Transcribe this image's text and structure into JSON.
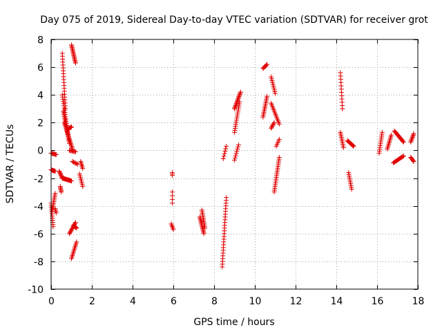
{
  "chart_data": {
    "type": "scatter",
    "title": "Day 075 of 2019, Sidereal Day-to-day VTEC variation (SDTVAR) for receiver grot",
    "xlabel": "GPS time / hours",
    "ylabel": "SDTVAR / TECUs",
    "xlim": [
      0,
      18
    ],
    "ylim": [
      -10,
      8
    ],
    "xticks": [
      "0",
      "2",
      "4",
      "6",
      "8",
      "10",
      "12",
      "14",
      "16",
      "18"
    ],
    "yticks": [
      "-10",
      "-8",
      "-6",
      "-4",
      "-2",
      "0",
      "2",
      "4",
      "6",
      "8"
    ],
    "grid": true,
    "marker": "+",
    "color": "#e00000",
    "segments": [
      {
        "x0": 0.0,
        "x1": 0.2,
        "y0": -1.4,
        "y1": -1.5,
        "n": 8
      },
      {
        "x0": 0.0,
        "x1": 0.25,
        "y0": -0.2,
        "y1": -0.3,
        "n": 8
      },
      {
        "x0": 0.0,
        "x1": 0.1,
        "y0": -3.8,
        "y1": -5.5,
        "n": 12
      },
      {
        "x0": 0.05,
        "x1": 0.2,
        "y0": -4.4,
        "y1": -3.1,
        "n": 12
      },
      {
        "x0": 0.2,
        "x1": 0.25,
        "y0": -4.2,
        "y1": -4.5,
        "n": 4
      },
      {
        "x0": 0.4,
        "x1": 0.55,
        "y0": -1.5,
        "y1": -2.0,
        "n": 8
      },
      {
        "x0": 0.45,
        "x1": 0.5,
        "y0": -2.6,
        "y1": -3.0,
        "n": 6
      },
      {
        "x0": 0.55,
        "x1": 1.0,
        "y0": -2.0,
        "y1": -2.2,
        "n": 16
      },
      {
        "x0": 0.55,
        "x1": 0.7,
        "y0": 7.0,
        "y1": 3.0,
        "n": 20
      },
      {
        "x0": 0.55,
        "x1": 0.85,
        "y0": 4.0,
        "y1": 1.0,
        "n": 20
      },
      {
        "x0": 0.6,
        "x1": 0.9,
        "y0": 2.8,
        "y1": 0.5,
        "n": 20
      },
      {
        "x0": 0.65,
        "x1": 1.05,
        "y0": 2.0,
        "y1": 0.1,
        "n": 20
      },
      {
        "x0": 0.8,
        "x1": 1.0,
        "y0": 1.5,
        "y1": 1.7,
        "n": 8
      },
      {
        "x0": 0.9,
        "x1": 1.2,
        "y0": 0.0,
        "y1": -0.1,
        "n": 8
      },
      {
        "x0": 1.0,
        "x1": 1.2,
        "y0": 7.6,
        "y1": 6.3,
        "n": 16
      },
      {
        "x0": 1.05,
        "x1": 1.3,
        "y0": -0.8,
        "y1": -1.0,
        "n": 6
      },
      {
        "x0": 0.9,
        "x1": 1.2,
        "y0": -6.0,
        "y1": -5.2,
        "n": 12
      },
      {
        "x0": 1.1,
        "x1": 1.25,
        "y0": -5.4,
        "y1": -5.6,
        "n": 6
      },
      {
        "x0": 1.0,
        "x1": 1.25,
        "y0": -7.8,
        "y1": -6.6,
        "n": 12
      },
      {
        "x0": 1.45,
        "x1": 1.55,
        "y0": -0.8,
        "y1": -1.3,
        "n": 6
      },
      {
        "x0": 1.4,
        "x1": 1.55,
        "y0": -1.7,
        "y1": -2.6,
        "n": 8
      },
      {
        "x0": 5.95,
        "x1": 5.95,
        "y0": -1.6,
        "y1": -1.8,
        "n": 3
      },
      {
        "x0": 5.95,
        "x1": 5.95,
        "y0": -3.0,
        "y1": -3.8,
        "n": 4
      },
      {
        "x0": 5.9,
        "x1": 6.0,
        "y0": -5.3,
        "y1": -5.7,
        "n": 5
      },
      {
        "x0": 7.3,
        "x1": 7.5,
        "y0": -4.8,
        "y1": -6.0,
        "n": 14
      },
      {
        "x0": 7.4,
        "x1": 7.55,
        "y0": -4.3,
        "y1": -5.6,
        "n": 12
      },
      {
        "x0": 8.45,
        "x1": 8.6,
        "y0": -0.6,
        "y1": 0.3,
        "n": 6
      },
      {
        "x0": 8.4,
        "x1": 8.6,
        "y0": -8.4,
        "y1": -3.4,
        "n": 26
      },
      {
        "x0": 9.0,
        "x1": 9.3,
        "y0": 3.0,
        "y1": 4.2,
        "n": 16
      },
      {
        "x0": 9.0,
        "x1": 9.25,
        "y0": 1.3,
        "y1": 3.5,
        "n": 16
      },
      {
        "x0": 9.0,
        "x1": 9.2,
        "y0": -0.7,
        "y1": 0.4,
        "n": 8
      },
      {
        "x0": 10.4,
        "x1": 10.6,
        "y0": 5.9,
        "y1": 6.2,
        "n": 6
      },
      {
        "x0": 10.4,
        "x1": 10.6,
        "y0": 2.4,
        "y1": 3.9,
        "n": 14
      },
      {
        "x0": 10.8,
        "x1": 11.0,
        "y0": 5.3,
        "y1": 4.1,
        "n": 10
      },
      {
        "x0": 10.8,
        "x1": 11.2,
        "y0": 3.4,
        "y1": 1.9,
        "n": 14
      },
      {
        "x0": 10.8,
        "x1": 10.95,
        "y0": 1.6,
        "y1": 2.0,
        "n": 6
      },
      {
        "x0": 11.05,
        "x1": 11.2,
        "y0": 0.3,
        "y1": 0.8,
        "n": 5
      },
      {
        "x0": 10.95,
        "x1": 11.2,
        "y0": -3.0,
        "y1": -0.5,
        "n": 20
      },
      {
        "x0": 14.2,
        "x1": 14.3,
        "y0": 5.6,
        "y1": 3.0,
        "n": 12
      },
      {
        "x0": 14.2,
        "x1": 14.35,
        "y0": 1.3,
        "y1": 0.2,
        "n": 10
      },
      {
        "x0": 14.55,
        "x1": 14.85,
        "y0": 0.7,
        "y1": 0.3,
        "n": 12
      },
      {
        "x0": 14.6,
        "x1": 14.75,
        "y0": -1.6,
        "y1": -2.8,
        "n": 10
      },
      {
        "x0": 16.1,
        "x1": 16.25,
        "y0": -0.2,
        "y1": 1.3,
        "n": 12
      },
      {
        "x0": 16.5,
        "x1": 16.7,
        "y0": 0.1,
        "y1": 1.1,
        "n": 10
      },
      {
        "x0": 16.8,
        "x1": 17.3,
        "y0": -0.9,
        "y1": -0.4,
        "n": 14
      },
      {
        "x0": 16.85,
        "x1": 17.3,
        "y0": 1.4,
        "y1": 0.6,
        "n": 14
      },
      {
        "x0": 17.65,
        "x1": 17.8,
        "y0": 0.6,
        "y1": 1.2,
        "n": 8
      },
      {
        "x0": 17.65,
        "x1": 17.8,
        "y0": -0.5,
        "y1": -0.8,
        "n": 6
      }
    ]
  }
}
